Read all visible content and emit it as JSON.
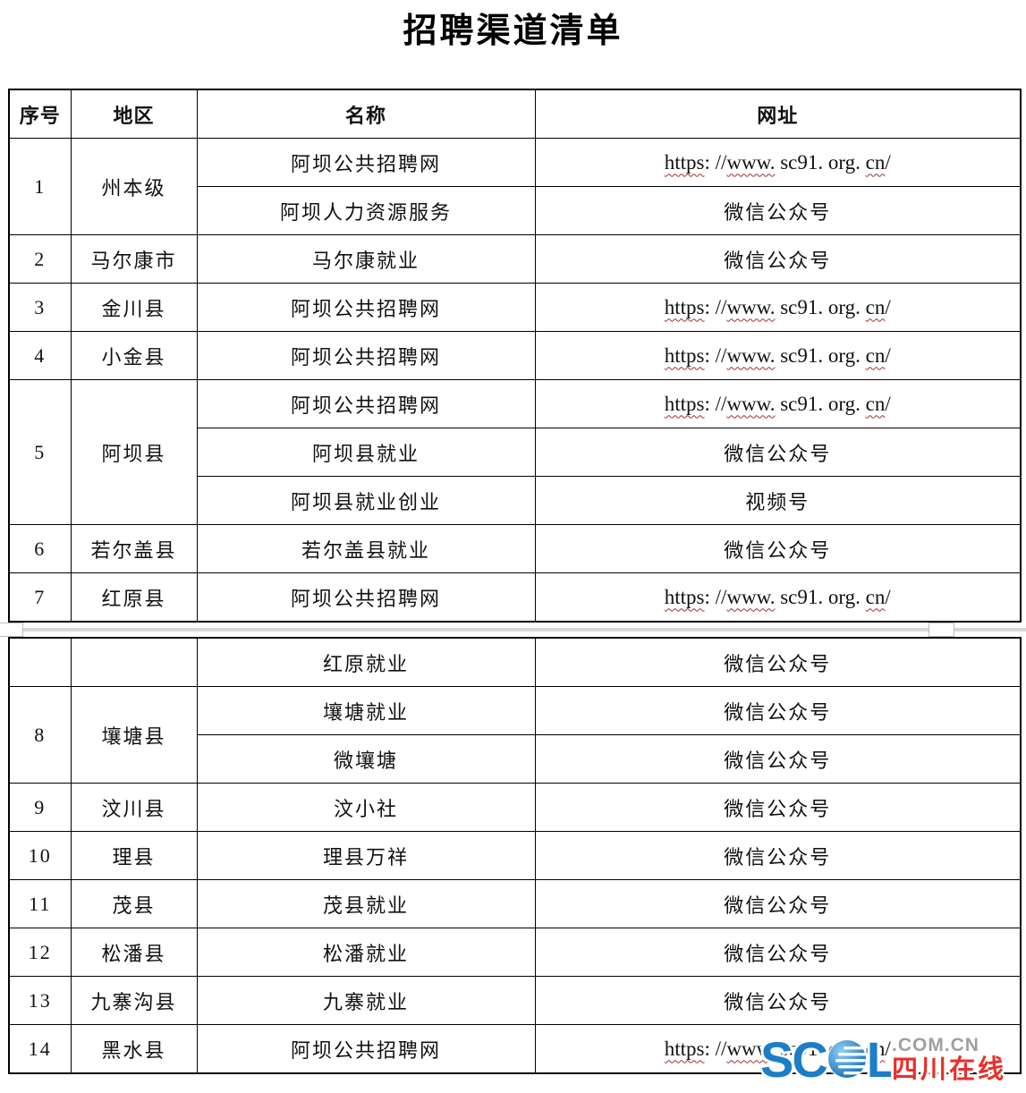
{
  "title": "招聘渠道清单",
  "colors": {
    "scol_blue": "#1b7ec7",
    "domain_gray": "#a0a0a0",
    "sichuan_red": "#e8302a",
    "squiggle_red": "#a52a2a",
    "band_gray": "#d6d6d6"
  },
  "watermark": {
    "sc": "SC",
    "l": "L",
    "domain": ".COM.CN",
    "site_name": "四川在线",
    "globe": "globe-icon"
  },
  "url_parts": [
    {
      "text": "https",
      "wavy": true
    },
    {
      "text": ": //",
      "wavy": false
    },
    {
      "text": "www.",
      "wavy": true
    },
    {
      "text": " sc91. org. ",
      "wavy": false
    },
    {
      "text": "cn",
      "wavy": true
    },
    {
      "text": "/",
      "wavy": false
    }
  ],
  "table": {
    "headers": [
      "序号",
      "地区",
      "名称",
      "网址"
    ],
    "sections": [
      {
        "rows": [
          {
            "no": "1",
            "rowspan": 2,
            "region": "州本级",
            "name": "阿坝公共招聘网",
            "site": "https://www.sc91.org.cn/",
            "site_url": true
          },
          {
            "name": "阿坝人力资源服务",
            "site": "微信公众号"
          },
          {
            "no": "2",
            "region": "马尔康市",
            "name": "马尔康就业",
            "site": "微信公众号"
          },
          {
            "no": "3",
            "region": "金川县",
            "name": "阿坝公共招聘网",
            "site": "https://www.sc91.org.cn/",
            "site_url": true
          },
          {
            "no": "4",
            "region": "小金县",
            "name": "阿坝公共招聘网",
            "site": "https://www.sc91.org.cn/",
            "site_url": true
          },
          {
            "no": "5",
            "rowspan": 3,
            "region": "阿坝县",
            "name": "阿坝公共招聘网",
            "site": "https://www.sc91.org.cn/",
            "site_url": true
          },
          {
            "name": "阿坝县就业",
            "site": "微信公众号"
          },
          {
            "name": "阿坝县就业创业",
            "site": "视频号"
          },
          {
            "no": "6",
            "region": "若尔盖县",
            "name": "若尔盖县就业",
            "site": "微信公众号"
          },
          {
            "no": "7",
            "region": "红原县",
            "name": "阿坝公共招聘网",
            "site": "https://www.sc91.org.cn/",
            "site_url": true
          }
        ]
      },
      {
        "rows": [
          {
            "no": "",
            "region": "",
            "name": "红原就业",
            "site": "微信公众号"
          },
          {
            "no": "8",
            "rowspan": 2,
            "region": "壤塘县",
            "name": "壤塘就业",
            "site": "微信公众号"
          },
          {
            "name": "微壤塘",
            "site": "微信公众号"
          },
          {
            "no": "9",
            "region": "汶川县",
            "name": "汶小社",
            "site": "微信公众号"
          },
          {
            "no": "10",
            "region": "理县",
            "name": "理县万祥",
            "site": "微信公众号"
          },
          {
            "no": "11",
            "region": "茂县",
            "name": "茂县就业",
            "site": "微信公众号"
          },
          {
            "no": "12",
            "region": "松潘县",
            "name": "松潘就业",
            "site": "微信公众号"
          },
          {
            "no": "13",
            "region": "九寨沟县",
            "name": "九寨就业",
            "site": "微信公众号"
          },
          {
            "no": "14",
            "region": "黑水县",
            "name": "阿坝公共招聘网",
            "site": "https://www.sc91.org.cn/",
            "site_url": true
          }
        ]
      }
    ]
  }
}
